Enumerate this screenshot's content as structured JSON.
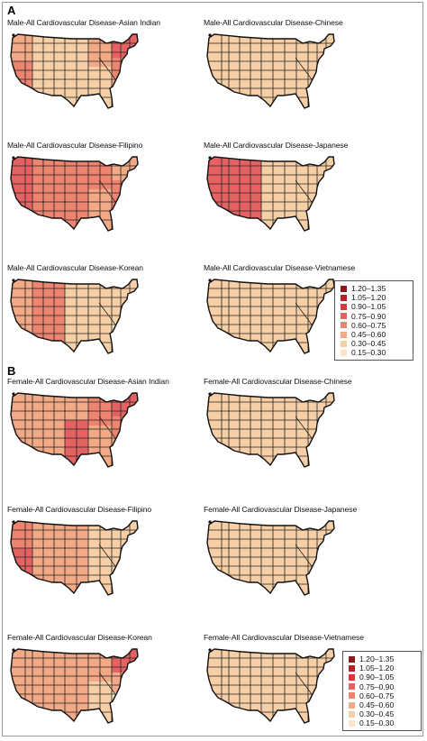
{
  "panels": [
    {
      "letter": "A",
      "maps": [
        {
          "title": "Male-All Cardiovascular Disease-Asian Indian",
          "pattern": "east"
        },
        {
          "title": "Male-All Cardiovascular Disease-Chinese",
          "pattern": "light"
        },
        {
          "title": "Male-All Cardiovascular Disease-Filipino",
          "pattern": "filipino"
        },
        {
          "title": "Male-All Cardiovascular Disease-Japanese",
          "pattern": "west"
        },
        {
          "title": "Male-All Cardiovascular Disease-Korean",
          "pattern": "korean"
        },
        {
          "title": "Male-All Cardiovascular Disease-Vietnamese",
          "pattern": "light"
        }
      ]
    },
    {
      "letter": "B",
      "maps": [
        {
          "title": "Female-All Cardiovascular Disease-Asian Indian",
          "pattern": "female_ai"
        },
        {
          "title": "Female-All Cardiovascular Disease-Chinese",
          "pattern": "light"
        },
        {
          "title": "Female-All Cardiovascular Disease-Filipino",
          "pattern": "west_f"
        },
        {
          "title": "Female-All Cardiovascular Disease-Japanese",
          "pattern": "light"
        },
        {
          "title": "Female-All Cardiovascular Disease-Korean",
          "pattern": "female_k"
        },
        {
          "title": "Female-All Cardiovascular Disease-Vietnamese",
          "pattern": "light"
        }
      ]
    }
  ],
  "legend": {
    "items": [
      {
        "label": "1.20–1.35",
        "color": "#8b1a1a"
      },
      {
        "label": "1.05–1.20",
        "color": "#b52424"
      },
      {
        "label": "0.90–1.05",
        "color": "#d83a3a"
      },
      {
        "label": "0.75–0.90",
        "color": "#e56262"
      },
      {
        "label": "0.60–0.75",
        "color": "#ec8470"
      },
      {
        "label": "0.45–0.60",
        "color": "#f2a985"
      },
      {
        "label": "0.30–0.45",
        "color": "#f7cfa6"
      },
      {
        "label": "0.15–0.30",
        "color": "#fbe7c8"
      }
    ]
  }
}
